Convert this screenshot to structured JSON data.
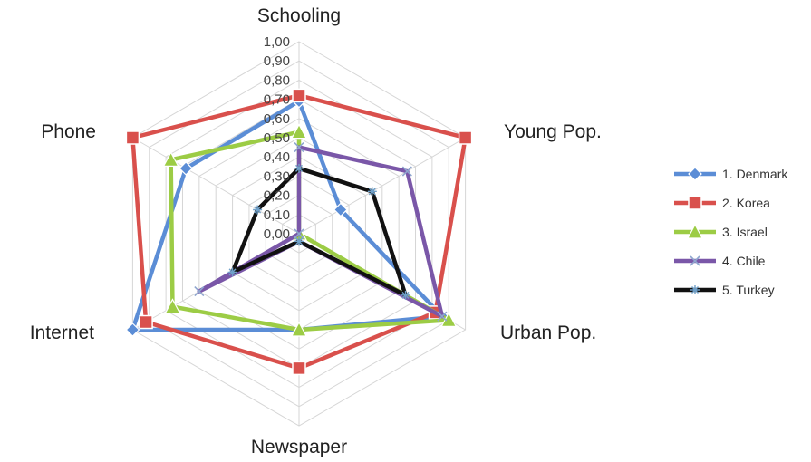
{
  "chart_data": {
    "type": "radar",
    "categories": [
      "Schooling",
      "Young Pop.",
      "Urban Pop.",
      "Newspaper",
      "Internet",
      "Phone"
    ],
    "rlim": [
      0,
      1
    ],
    "ticks": [
      "0,00",
      "0,10",
      "0,20",
      "0,30",
      "0,40",
      "0,50",
      "0,60",
      "0,70",
      "0,80",
      "0,90",
      "1,00"
    ],
    "legend_position": "right",
    "grid": true,
    "series": [
      {
        "name": "1. Denmark",
        "color": "#5b8dd6",
        "marker": "diamond",
        "values": [
          0.69,
          0.25,
          0.86,
          0.5,
          1.0,
          0.68
        ]
      },
      {
        "name": "2. Korea",
        "color": "#d9504c",
        "marker": "square",
        "values": [
          0.72,
          1.0,
          0.82,
          0.7,
          0.92,
          1.0
        ]
      },
      {
        "name": "3. Israel",
        "color": "#9ccc45",
        "marker": "triangle",
        "values": [
          0.53,
          0.0,
          0.9,
          0.5,
          0.76,
          0.77
        ]
      },
      {
        "name": "4. Chile",
        "color": "#7a57a8",
        "marker": "x",
        "values": [
          0.45,
          0.65,
          0.86,
          0.04,
          0.6,
          0.0
        ]
      },
      {
        "name": "5. Turkey",
        "color": "#111111",
        "marker": "star",
        "values": [
          0.34,
          0.44,
          0.64,
          0.04,
          0.4,
          0.25
        ]
      }
    ]
  }
}
